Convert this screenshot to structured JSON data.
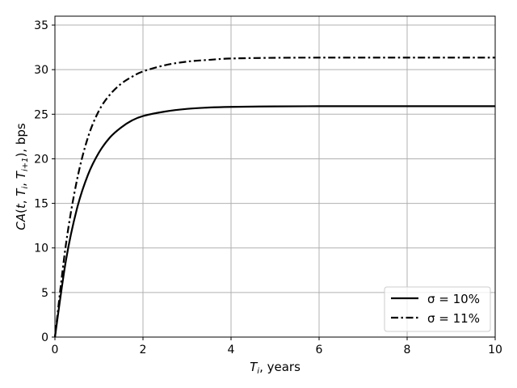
{
  "chart_data": {
    "type": "line",
    "title": "",
    "xlabel": "T_i, years",
    "ylabel": "CA(t, T_i, T_{i+1}), bps",
    "xlim": [
      0,
      10
    ],
    "ylim": [
      0,
      36
    ],
    "x_ticks": [
      0,
      2,
      4,
      6,
      8,
      10
    ],
    "y_ticks": [
      0,
      5,
      10,
      15,
      20,
      25,
      30,
      35
    ],
    "grid": true,
    "legend_position": "bottom-right",
    "x": [
      0,
      0.25,
      0.5,
      0.75,
      1,
      1.25,
      1.5,
      1.75,
      2,
      2.5,
      3,
      3.5,
      4,
      5,
      6,
      7,
      8,
      9,
      10
    ],
    "series": [
      {
        "name": "σ = 10%",
        "line_style": "solid",
        "color": "#000000",
        "values": [
          0,
          8.6,
          14.4,
          18.2,
          20.7,
          22.4,
          23.5,
          24.3,
          24.8,
          25.3,
          25.6,
          25.75,
          25.82,
          25.88,
          25.9,
          25.9,
          25.9,
          25.9,
          25.9
        ]
      },
      {
        "name": "σ = 11%",
        "line_style": "dashdot",
        "color": "#000000",
        "values": [
          0,
          10.4,
          17.6,
          22.4,
          25.4,
          27.2,
          28.4,
          29.2,
          29.8,
          30.5,
          30.9,
          31.1,
          31.25,
          31.33,
          31.35,
          31.35,
          31.35,
          31.35,
          31.35
        ]
      }
    ]
  }
}
